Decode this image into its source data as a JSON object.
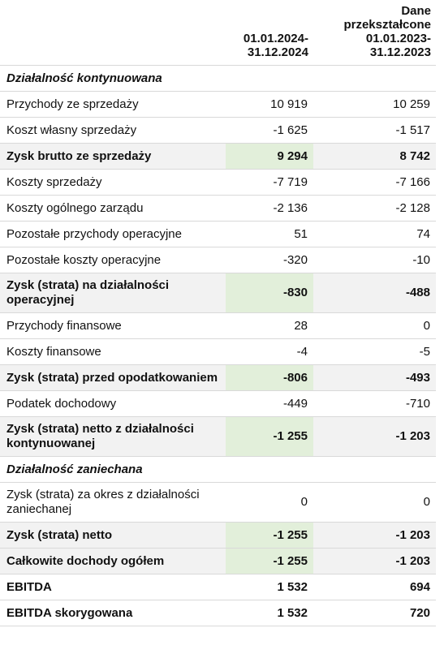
{
  "header": {
    "columns": [
      [
        "01.01.2024-",
        "31.12.2024"
      ],
      [
        "Dane",
        "przekształcone",
        "01.01.2023-",
        "31.12.2023"
      ]
    ]
  },
  "table": {
    "rows": [
      {
        "label": "Działalność kontynuowana",
        "style": "section",
        "values": []
      },
      {
        "label": "Przychody ze sprzedaży",
        "style": "normal",
        "values": [
          "10 919",
          "10 259"
        ]
      },
      {
        "label": "Koszt własny sprzedaży",
        "style": "normal",
        "values": [
          "-1 625",
          "-1 517"
        ]
      },
      {
        "label": "Zysk brutto ze sprzedaży",
        "style": "subtotal",
        "values": [
          "9 294",
          "8 742"
        ]
      },
      {
        "label": "Koszty sprzedaży",
        "style": "normal",
        "values": [
          "-7 719",
          "-7 166"
        ]
      },
      {
        "label": "Koszty ogólnego zarządu",
        "style": "normal",
        "values": [
          "-2 136",
          "-2 128"
        ]
      },
      {
        "label": "Pozostałe przychody operacyjne",
        "style": "normal",
        "values": [
          "51",
          "74"
        ]
      },
      {
        "label": "Pozostałe koszty operacyjne",
        "style": "normal",
        "values": [
          "-320",
          "-10"
        ]
      },
      {
        "label": "Zysk (strata) na działalności operacyjnej",
        "style": "subtotal",
        "values": [
          "-830",
          "-488"
        ]
      },
      {
        "label": "Przychody finansowe",
        "style": "normal",
        "values": [
          "28",
          "0"
        ]
      },
      {
        "label": "Koszty finansowe",
        "style": "normal",
        "values": [
          "-4",
          "-5"
        ]
      },
      {
        "label": "Zysk (strata) przed opodatkowaniem",
        "style": "subtotal",
        "values": [
          "-806",
          "-493"
        ]
      },
      {
        "label": "Podatek dochodowy",
        "style": "normal",
        "values": [
          "-449",
          "-710"
        ]
      },
      {
        "label": "Zysk (strata) netto z działalności kontynuowanej",
        "style": "subtotal",
        "values": [
          "-1 255",
          "-1 203"
        ]
      },
      {
        "label": "Działalność zaniechana",
        "style": "section",
        "values": []
      },
      {
        "label": "Zysk (strata) za okres z działalności zaniechanej",
        "style": "normal",
        "values": [
          "0",
          "0"
        ]
      },
      {
        "label": "Zysk (strata) netto",
        "style": "subtotal",
        "values": [
          "-1 255",
          "-1 203"
        ]
      },
      {
        "label": "Całkowite dochody ogółem",
        "style": "subtotal",
        "values": [
          "-1 255",
          "-1 203"
        ]
      },
      {
        "label": "EBITDA",
        "style": "bold",
        "values": [
          "1 532",
          "694"
        ]
      },
      {
        "label": "EBITDA skorygowana",
        "style": "bold",
        "values": [
          "1 532",
          "720"
        ]
      }
    ]
  }
}
